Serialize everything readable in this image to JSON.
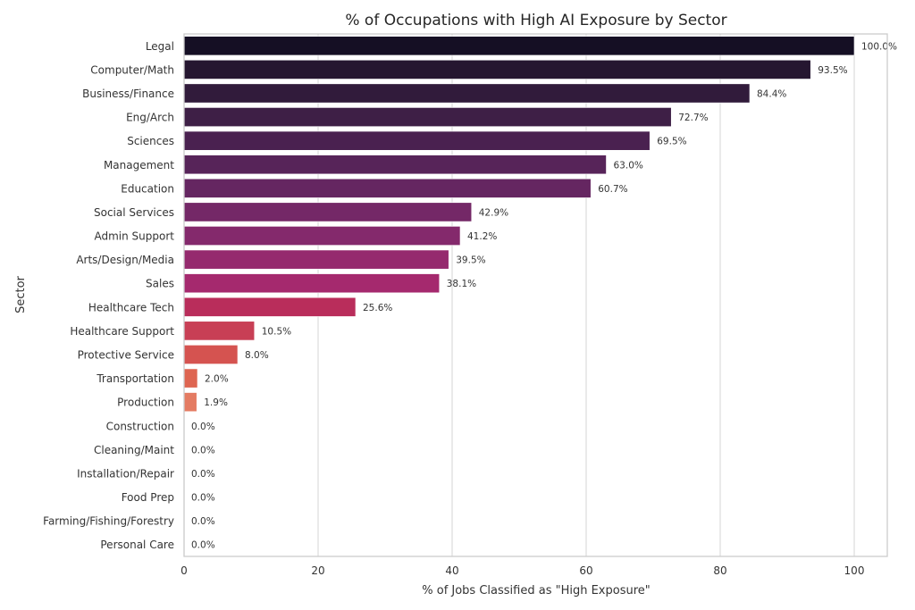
{
  "chart_data": {
    "type": "bar",
    "orientation": "horizontal",
    "title": "% of Occupations with High AI Exposure by Sector",
    "xlabel": "% of Jobs Classified as \"High Exposure\"",
    "ylabel": "Sector",
    "xlim": [
      0,
      105
    ],
    "xticks": [
      0,
      20,
      40,
      60,
      80,
      100
    ],
    "grid": "x",
    "legend": "none",
    "palette": "rocket",
    "categories": [
      "Legal",
      "Computer/Math",
      "Business/Finance",
      "Eng/Arch",
      "Sciences",
      "Management",
      "Education",
      "Social Services",
      "Admin Support",
      "Arts/Design/Media",
      "Sales",
      "Healthcare Tech",
      "Healthcare Support",
      "Protective Service",
      "Transportation",
      "Production",
      "Construction",
      "Cleaning/Maint",
      "Installation/Repair",
      "Food Prep",
      "Farming/Fishing/Forestry",
      "Personal Care"
    ],
    "values": [
      100.0,
      93.5,
      84.4,
      72.7,
      69.5,
      63.0,
      60.7,
      42.9,
      41.2,
      39.5,
      38.1,
      25.6,
      10.5,
      8.0,
      2.0,
      1.9,
      0.0,
      0.0,
      0.0,
      0.0,
      0.0,
      0.0
    ],
    "data_labels": [
      "100.0%",
      "93.5%",
      "84.4%",
      "72.7%",
      "69.5%",
      "63.0%",
      "60.7%",
      "42.9%",
      "41.2%",
      "39.5%",
      "38.1%",
      "25.6%",
      "10.5%",
      "8.0%",
      "2.0%",
      "1.9%",
      "0.0%",
      "0.0%",
      "0.0%",
      "0.0%",
      "0.0%",
      "0.0%"
    ],
    "colors": [
      "#150f24",
      "#251630",
      "#311b3b",
      "#3e1f46",
      "#4a2150",
      "#572459",
      "#652661",
      "#742867",
      "#84296c",
      "#952a6e",
      "#a5296e",
      "#b92d5b",
      "#c83f55",
      "#d55350",
      "#de6551",
      "#e47b62",
      "#ec9575",
      "#efa888",
      "#f1bb9c",
      "#f3cdb1",
      "#f5dec6",
      "#f7ead9"
    ]
  }
}
